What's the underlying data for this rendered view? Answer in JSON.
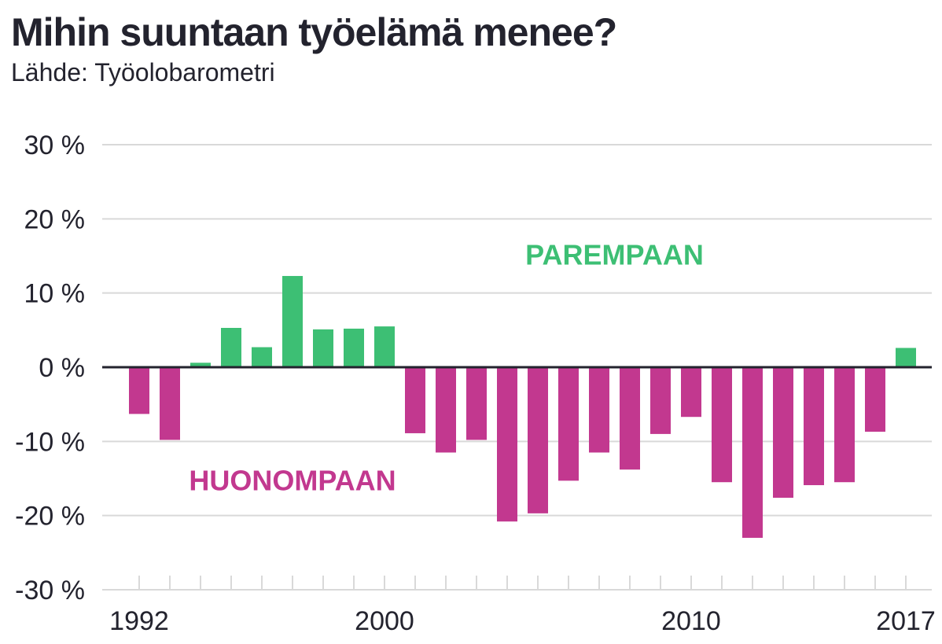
{
  "title": "Mihin suuntaan työelämä menee?",
  "subtitle": "Lähde: Työolobarometri",
  "colors": {
    "positive": "#3dbf74",
    "negative": "#c2388f",
    "zero_line": "#23232e",
    "grid": "#d9d9d9",
    "text": "#23232e"
  },
  "chart_data": {
    "type": "bar",
    "title": "Mihin suuntaan työelämä menee?",
    "subtitle": "Lähde: Työolobarometri",
    "xlabel": "",
    "ylabel": "",
    "ylim": [
      -30,
      30
    ],
    "yticks": [
      30,
      20,
      10,
      0,
      -10,
      -20,
      -30
    ],
    "ytick_labels": [
      "30 %",
      "20 %",
      "10 %",
      "0 %",
      "-10 %",
      "-20 %",
      "-30 %"
    ],
    "xtick_labels": [
      {
        "year": 1992,
        "label": "1992"
      },
      {
        "year": 2000,
        "label": "2000"
      },
      {
        "year": 2010,
        "label": "2010"
      },
      {
        "year": 2017,
        "label": "2017"
      }
    ],
    "categories": [
      1992,
      1993,
      1994,
      1995,
      1996,
      1997,
      1998,
      1999,
      2000,
      2001,
      2002,
      2003,
      2004,
      2005,
      2006,
      2007,
      2008,
      2009,
      2010,
      2011,
      2012,
      2013,
      2014,
      2015,
      2016,
      2017
    ],
    "values": [
      -6.3,
      -9.8,
      0.6,
      5.3,
      2.7,
      12.3,
      5.1,
      5.2,
      5.5,
      -8.9,
      -11.5,
      -9.8,
      -20.8,
      -19.7,
      -15.3,
      -11.5,
      -13.8,
      -9.0,
      -6.7,
      -15.5,
      -23.0,
      -17.6,
      -15.9,
      -15.5,
      -8.7,
      2.6
    ],
    "annotations": [
      {
        "text": "PAREMPAAN",
        "x": 2007.5,
        "y": 15.2,
        "color": "#3dbf74"
      },
      {
        "text": "HUONOMPAAN",
        "x": 1997,
        "y": -15.2,
        "color": "#c2388f"
      }
    ]
  }
}
